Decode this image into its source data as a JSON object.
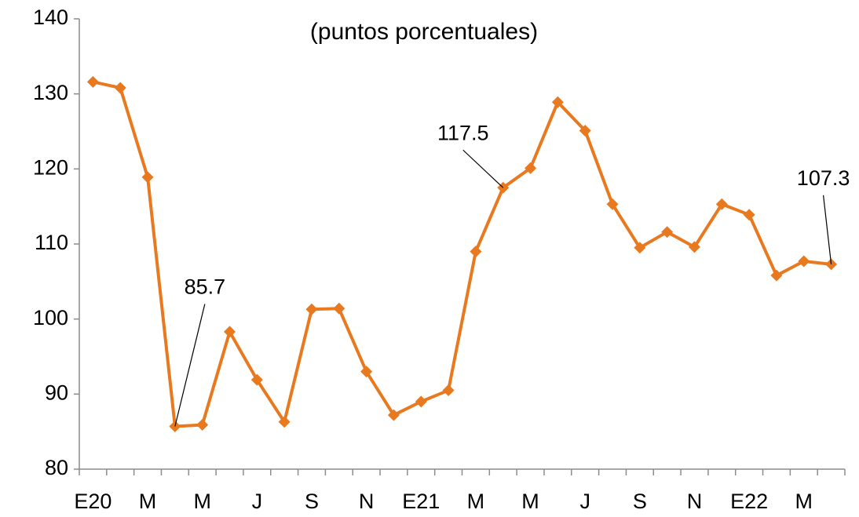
{
  "chart_data": {
    "type": "line",
    "title": "(puntos porcentuales)",
    "categories": [
      "E20",
      null,
      "M",
      null,
      "M",
      null,
      "J",
      null,
      "S",
      null,
      "N",
      null,
      "E21",
      null,
      "M",
      null,
      "M",
      null,
      "J",
      null,
      "S",
      null,
      "N",
      null,
      "E22",
      null,
      "M",
      null
    ],
    "series": [
      {
        "name": null,
        "color": "#e8791f",
        "values": [
          131.6,
          130.8,
          118.9,
          85.7,
          85.9,
          98.3,
          91.9,
          86.3,
          101.3,
          101.4,
          93,
          87.2,
          89,
          90.5,
          109,
          117.5,
          120.1,
          128.9,
          125.1,
          115.3,
          109.5,
          111.6,
          109.6,
          115.3,
          113.9,
          105.8,
          107.7,
          107.3
        ],
        "value_labels": [
          null,
          null,
          null,
          "85.7",
          null,
          null,
          null,
          null,
          null,
          null,
          null,
          null,
          null,
          null,
          null,
          "117.5",
          null,
          null,
          null,
          null,
          null,
          null,
          null,
          null,
          null,
          null,
          null,
          "107.3"
        ]
      }
    ],
    "ylim": [
      80,
      140
    ],
    "yticks": [
      80,
      90,
      100,
      110,
      120,
      130,
      140
    ],
    "grid": false,
    "marker": "diamond"
  }
}
